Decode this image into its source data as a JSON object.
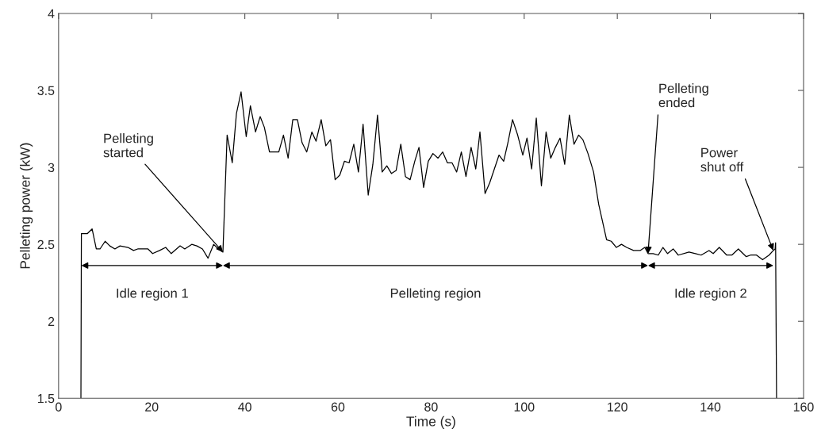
{
  "chart_data": {
    "type": "line",
    "xlabel": "Time (s)",
    "ylabel": "Pelleting power (kW)",
    "xlim": [
      0,
      160
    ],
    "xticks": [
      0,
      20,
      40,
      60,
      80,
      100,
      120,
      140,
      160
    ],
    "ylim": [
      1.5,
      4
    ],
    "yticks": [
      1.5,
      2,
      2.5,
      3,
      3.5,
      4
    ],
    "grid": false,
    "legend": false,
    "marker": "none",
    "line_style": "solid",
    "series": [
      {
        "color": "#000000",
        "x": [
          4.8,
          4.9,
          6.2,
          7.2,
          8.1,
          8.9,
          10.0,
          11.0,
          12.1,
          13.2,
          14.9,
          16.1,
          17.0,
          19.2,
          20.2,
          21.7,
          23.0,
          24.2,
          26.1,
          27.1,
          28.6,
          29.7,
          30.9,
          32.1,
          33.3,
          34.3,
          35.3,
          36.2,
          37.3,
          38.2,
          39.2,
          40.3,
          41.2,
          42.3,
          43.3,
          44.2,
          45.3,
          47.3,
          48.3,
          49.3,
          50.3,
          51.3,
          52.3,
          53.3,
          54.4,
          55.3,
          56.4,
          57.4,
          58.4,
          59.4,
          60.4,
          61.4,
          62.4,
          63.4,
          64.4,
          65.4,
          66.5,
          67.5,
          68.5,
          69.5,
          70.5,
          71.5,
          72.5,
          73.5,
          74.5,
          75.5,
          76.5,
          77.4,
          78.4,
          79.4,
          80.4,
          81.5,
          82.5,
          83.5,
          84.5,
          85.5,
          86.5,
          87.5,
          88.6,
          89.6,
          90.5,
          91.6,
          92.6,
          93.6,
          94.6,
          95.6,
          96.5,
          97.5,
          98.6,
          99.7,
          100.6,
          101.6,
          102.6,
          103.7,
          104.7,
          105.7,
          106.7,
          107.7,
          108.7,
          109.7,
          110.7,
          111.7,
          112.6,
          113.7,
          114.9,
          116.0,
          117.7,
          118.7,
          119.8,
          120.9,
          122.0,
          123.5,
          124.9,
          125.9,
          126.6,
          127.7,
          128.8,
          129.8,
          130.8,
          132.0,
          133.1,
          135.4,
          136.8,
          138.0,
          139.7,
          140.6,
          141.9,
          143.5,
          144.6,
          146.0,
          147.7,
          148.6,
          149.9,
          151.2,
          152.6,
          153.5,
          153.9,
          154.0,
          154.2
        ],
        "values": [
          1.5,
          2.57,
          2.57,
          2.6,
          2.47,
          2.47,
          2.52,
          2.49,
          2.47,
          2.49,
          2.48,
          2.46,
          2.47,
          2.47,
          2.44,
          2.46,
          2.48,
          2.44,
          2.49,
          2.47,
          2.5,
          2.49,
          2.47,
          2.41,
          2.5,
          2.47,
          2.45,
          3.21,
          3.03,
          3.35,
          3.49,
          3.2,
          3.4,
          3.23,
          3.33,
          3.26,
          3.1,
          3.1,
          3.21,
          3.06,
          3.31,
          3.31,
          3.16,
          3.1,
          3.23,
          3.17,
          3.31,
          3.14,
          3.18,
          2.92,
          2.95,
          3.04,
          3.03,
          3.15,
          2.97,
          3.28,
          2.82,
          3.02,
          3.34,
          2.97,
          3.01,
          2.96,
          2.98,
          3.15,
          2.94,
          2.92,
          3.04,
          3.13,
          2.87,
          3.04,
          3.09,
          3.06,
          3.1,
          3.03,
          3.03,
          2.97,
          3.1,
          2.94,
          3.13,
          2.99,
          3.23,
          2.83,
          2.9,
          2.99,
          3.08,
          3.04,
          3.16,
          3.31,
          3.21,
          3.08,
          3.19,
          2.99,
          3.32,
          2.88,
          3.23,
          3.06,
          3.13,
          3.19,
          3.02,
          3.34,
          3.15,
          3.21,
          3.18,
          3.09,
          2.97,
          2.76,
          2.53,
          2.52,
          2.48,
          2.5,
          2.48,
          2.46,
          2.46,
          2.48,
          2.44,
          2.44,
          2.43,
          2.48,
          2.44,
          2.47,
          2.43,
          2.45,
          2.44,
          2.43,
          2.46,
          2.44,
          2.48,
          2.43,
          2.43,
          2.47,
          2.42,
          2.43,
          2.43,
          2.4,
          2.43,
          2.46,
          2.47,
          2.51,
          1.5
        ]
      }
    ],
    "annotations": [
      {
        "text": "Pelleting\nstarted",
        "x": 35.3,
        "y": 2.45
      },
      {
        "text": "Pelleting\nended",
        "x": 126.6,
        "y": 2.44
      },
      {
        "text": "Power\nshut off",
        "x": 153.5,
        "y": 2.46
      },
      "Idle region 1",
      "Pelleting region",
      "Idle region 2"
    ]
  }
}
